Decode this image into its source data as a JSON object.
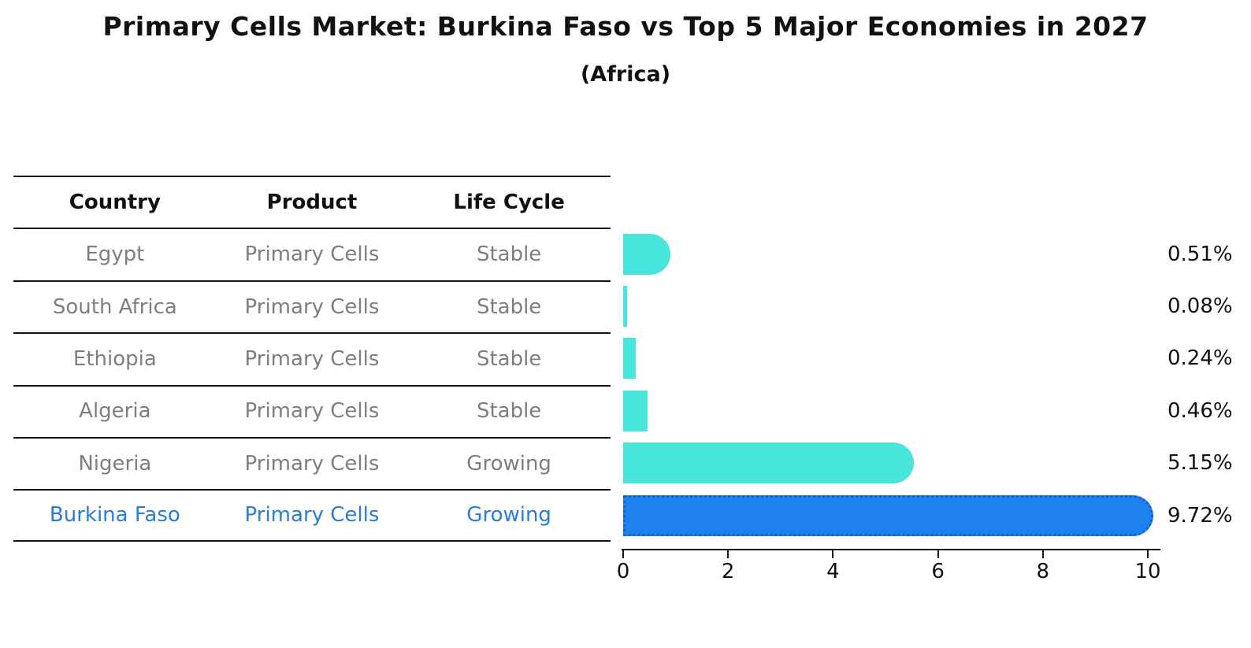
{
  "chart_data": {
    "type": "bar",
    "orientation": "horizontal",
    "title": "Primary Cells Market: Burkina Faso vs Top 5 Major Economies in 2027",
    "subtitle": "(Africa)",
    "categories": [
      "Egypt",
      "South Africa",
      "Ethiopia",
      "Algeria",
      "Nigeria",
      "Burkina Faso"
    ],
    "values": [
      0.51,
      0.08,
      0.24,
      0.46,
      5.15,
      9.72
    ],
    "value_labels": [
      "0.51%",
      "0.08%",
      "0.24%",
      "0.46%",
      "5.15%",
      "9.72%"
    ],
    "xlim": [
      0,
      10
    ],
    "x_ticks": [
      "0",
      "2",
      "4",
      "6",
      "8",
      "10"
    ],
    "grid": "off",
    "legend": "none",
    "bar_color": "#48e5dc",
    "highlight_color": "#1e82ee",
    "highlight_border_color": "#1063cc",
    "highlight_index": 5
  },
  "table": {
    "headers": [
      "Country",
      "Product",
      "Life Cycle"
    ],
    "rows": [
      {
        "country": "Egypt",
        "product": "Primary Cells",
        "life_cycle": "Stable",
        "highlighted": false
      },
      {
        "country": "South Africa",
        "product": "Primary Cells",
        "life_cycle": "Stable",
        "highlighted": false
      },
      {
        "country": "Ethiopia",
        "product": "Primary Cells",
        "life_cycle": "Stable",
        "highlighted": false
      },
      {
        "country": "Algeria",
        "product": "Primary Cells",
        "life_cycle": "Stable",
        "highlighted": false
      },
      {
        "country": "Nigeria",
        "product": "Primary Cells",
        "life_cycle": "Growing",
        "highlighted": false
      },
      {
        "country": "Burkina Faso",
        "product": "Primary Cells",
        "life_cycle": "Growing",
        "highlighted": true
      }
    ]
  },
  "colors": {
    "ink": "#111111",
    "line": "#141414",
    "row_text": "#7e7e7e",
    "highlight_text": "#2b7cd6"
  }
}
